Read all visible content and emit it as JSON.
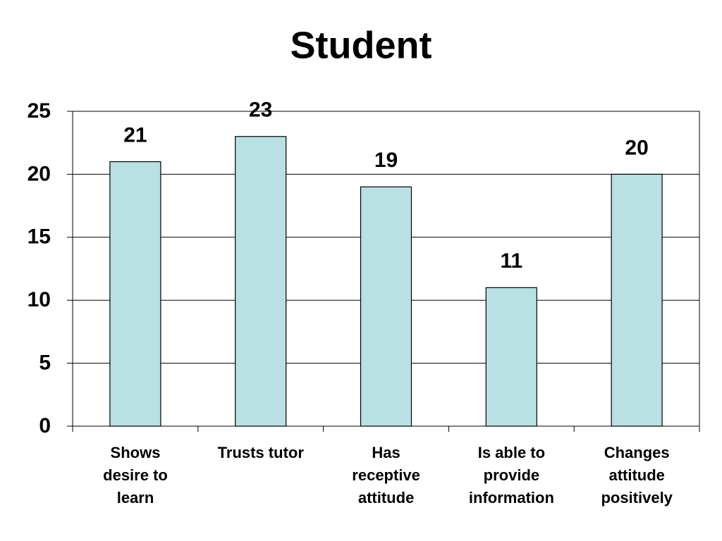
{
  "chart_data": {
    "type": "bar",
    "title": "Student",
    "categories": [
      "Shows\ndesire to\nlearn",
      "Trusts tutor",
      "Has\nreceptive\nattitude",
      "Is able to\nprovide\ninformation",
      "Changes\nattitude\npositively"
    ],
    "values": [
      21,
      23,
      19,
      11,
      20
    ],
    "color": "#b9e0e3",
    "ylim": [
      0,
      25
    ],
    "yticks": [
      0,
      5,
      10,
      15,
      20,
      25
    ],
    "grid": true
  }
}
